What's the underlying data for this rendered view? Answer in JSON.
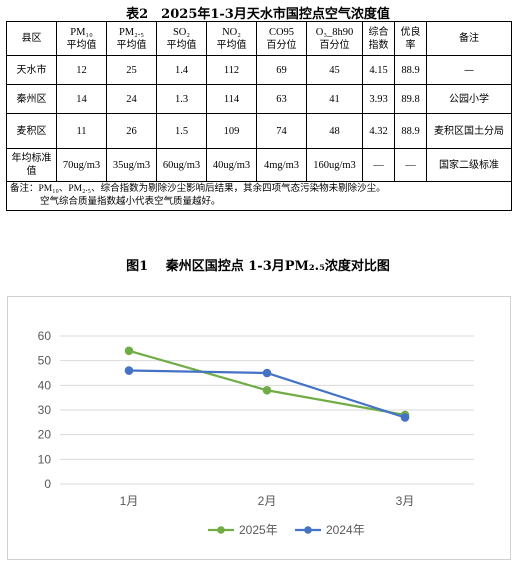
{
  "table_caption": "表2　2025年1-3月天水市国控点空气浓度值",
  "table": {
    "headers": [
      [
        "县区"
      ],
      [
        "PM₁₀",
        "平均值"
      ],
      [
        "PM₂.₅",
        "平均值"
      ],
      [
        "SO₂",
        "平均值"
      ],
      [
        "NO₂",
        "平均值"
      ],
      [
        "CO95",
        "百分位"
      ],
      [
        "O₃_8h90",
        "百分位"
      ],
      [
        "综合",
        "指数"
      ],
      [
        "优良",
        "率"
      ],
      [
        "备注"
      ]
    ],
    "rows": [
      [
        "天水市",
        "12",
        "25",
        "1.4",
        "112",
        "69",
        "45",
        "4.15",
        "88.9",
        "—"
      ],
      [
        "秦州区",
        "14",
        "24",
        "1.3",
        "114",
        "63",
        "41",
        "3.93",
        "89.8",
        "公园小学"
      ],
      [
        "麦积区",
        "11",
        "26",
        "1.5",
        "109",
        "74",
        "48",
        "4.32",
        "88.9",
        "麦积区国土分局"
      ],
      [
        "年均标准值",
        "70ug/m3",
        "35ug/m3",
        "60ug/m3",
        "40ug/m3",
        "4mg/m3",
        "160ug/m3",
        "—",
        "—",
        "国家二级标准"
      ]
    ],
    "note_line1": "备注：PM₁₀、PM₂.₅、综合指数为剔除沙尘影响后结果，其余四项气态污染物未剔除沙尘。",
    "note_line2": "空气综合质量指数越小代表空气质量越好。"
  },
  "figure_caption": "图1　 秦州区国控点 1-3月PM₂.₅浓度对比图",
  "chart_data": {
    "type": "line",
    "categories": [
      "1月",
      "2月",
      "3月"
    ],
    "series": [
      {
        "name": "2025年",
        "color": "#70ad47",
        "values": [
          54,
          38,
          28
        ]
      },
      {
        "name": "2024年",
        "color": "#4472c4",
        "values": [
          46,
          45,
          27
        ]
      }
    ],
    "ylim": [
      0,
      60
    ],
    "yticks": [
      0,
      10,
      20,
      30,
      40,
      50,
      60
    ],
    "grid": true,
    "legend_position": "bottom"
  }
}
